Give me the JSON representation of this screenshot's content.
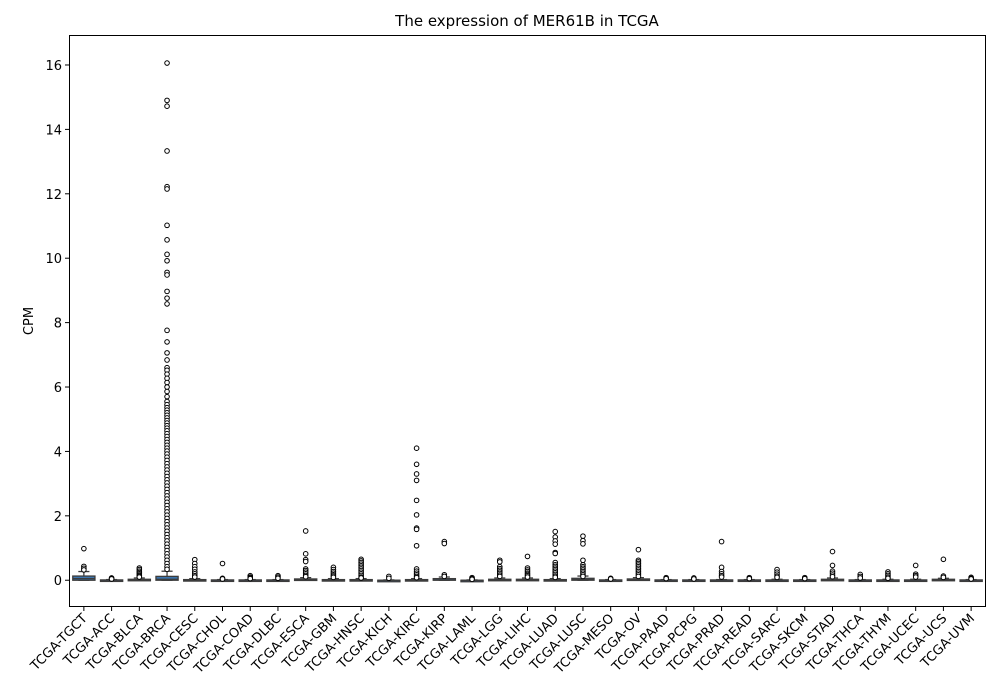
{
  "chart_data": {
    "type": "box",
    "title": "The expression of MER61B in TCGA",
    "xlabel": "",
    "ylabel": "CPM",
    "ylim": [
      -0.8,
      16.9
    ],
    "yticks": [
      0,
      2,
      4,
      6,
      8,
      10,
      12,
      14,
      16
    ],
    "grid": false,
    "box_color": "#3b75af",
    "categories": [
      "TCGA-TGCT",
      "TCGA-ACC",
      "TCGA-BLCA",
      "TCGA-BRCA",
      "TCGA-CESC",
      "TCGA-CHOL",
      "TCGA-COAD",
      "TCGA-DLBC",
      "TCGA-ESCA",
      "TCGA-GBM",
      "TCGA-HNSC",
      "TCGA-KICH",
      "TCGA-KIRC",
      "TCGA-KIRP",
      "TCGA-LAML",
      "TCGA-LGG",
      "TCGA-LIHC",
      "TCGA-LUAD",
      "TCGA-LUSC",
      "TCGA-MESO",
      "TCGA-OV",
      "TCGA-PAAD",
      "TCGA-PCPG",
      "TCGA-PRAD",
      "TCGA-READ",
      "TCGA-SARC",
      "TCGA-SKCM",
      "TCGA-STAD",
      "TCGA-THCA",
      "TCGA-THYM",
      "TCGA-UCEC",
      "TCGA-UCS",
      "TCGA-UVM"
    ],
    "boxes": [
      {
        "q1": 0.0,
        "median": 0.05,
        "q3": 0.13,
        "whisker_low": 0.0,
        "whisker_high": 0.27
      },
      {
        "q1": 0.0,
        "median": 0.0,
        "q3": 0.01,
        "whisker_low": 0.0,
        "whisker_high": 0.02
      },
      {
        "q1": 0.0,
        "median": 0.01,
        "q3": 0.03,
        "whisker_low": 0.0,
        "whisker_high": 0.07
      },
      {
        "q1": 0.0,
        "median": 0.03,
        "q3": 0.12,
        "whisker_low": 0.0,
        "whisker_high": 0.28
      },
      {
        "q1": 0.0,
        "median": 0.0,
        "q3": 0.02,
        "whisker_low": 0.0,
        "whisker_high": 0.05
      },
      {
        "q1": 0.0,
        "median": 0.0,
        "q3": 0.01,
        "whisker_low": 0.0,
        "whisker_high": 0.02
      },
      {
        "q1": 0.0,
        "median": 0.0,
        "q3": 0.01,
        "whisker_low": 0.0,
        "whisker_high": 0.02
      },
      {
        "q1": 0.0,
        "median": 0.0,
        "q3": 0.01,
        "whisker_low": 0.0,
        "whisker_high": 0.02
      },
      {
        "q1": 0.0,
        "median": 0.01,
        "q3": 0.04,
        "whisker_low": 0.0,
        "whisker_high": 0.08
      },
      {
        "q1": 0.0,
        "median": 0.0,
        "q3": 0.02,
        "whisker_low": 0.0,
        "whisker_high": 0.05
      },
      {
        "q1": 0.0,
        "median": 0.0,
        "q3": 0.02,
        "whisker_low": 0.0,
        "whisker_high": 0.05
      },
      {
        "q1": 0.0,
        "median": 0.0,
        "q3": 0.0,
        "whisker_low": 0.0,
        "whisker_high": 0.01
      },
      {
        "q1": 0.0,
        "median": 0.0,
        "q3": 0.02,
        "whisker_low": 0.0,
        "whisker_high": 0.05
      },
      {
        "q1": 0.0,
        "median": 0.01,
        "q3": 0.05,
        "whisker_low": 0.0,
        "whisker_high": 0.1
      },
      {
        "q1": 0.0,
        "median": 0.0,
        "q3": 0.0,
        "whisker_low": 0.0,
        "whisker_high": 0.01
      },
      {
        "q1": 0.0,
        "median": 0.01,
        "q3": 0.03,
        "whisker_low": 0.0,
        "whisker_high": 0.07
      },
      {
        "q1": 0.0,
        "median": 0.01,
        "q3": 0.03,
        "whisker_low": 0.0,
        "whisker_high": 0.07
      },
      {
        "q1": 0.0,
        "median": 0.0,
        "q3": 0.02,
        "whisker_low": 0.0,
        "whisker_high": 0.05
      },
      {
        "q1": 0.0,
        "median": 0.02,
        "q3": 0.06,
        "whisker_low": 0.0,
        "whisker_high": 0.13
      },
      {
        "q1": 0.0,
        "median": 0.0,
        "q3": 0.01,
        "whisker_low": 0.0,
        "whisker_high": 0.02
      },
      {
        "q1": 0.0,
        "median": 0.01,
        "q3": 0.04,
        "whisker_low": 0.0,
        "whisker_high": 0.08
      },
      {
        "q1": 0.0,
        "median": 0.0,
        "q3": 0.01,
        "whisker_low": 0.0,
        "whisker_high": 0.02
      },
      {
        "q1": 0.0,
        "median": 0.0,
        "q3": 0.01,
        "whisker_low": 0.0,
        "whisker_high": 0.02
      },
      {
        "q1": 0.0,
        "median": 0.0,
        "q3": 0.01,
        "whisker_low": 0.0,
        "whisker_high": 0.02
      },
      {
        "q1": 0.0,
        "median": 0.0,
        "q3": 0.01,
        "whisker_low": 0.0,
        "whisker_high": 0.02
      },
      {
        "q1": 0.0,
        "median": 0.0,
        "q3": 0.01,
        "whisker_low": 0.0,
        "whisker_high": 0.03
      },
      {
        "q1": 0.0,
        "median": 0.0,
        "q3": 0.01,
        "whisker_low": 0.0,
        "whisker_high": 0.02
      },
      {
        "q1": 0.0,
        "median": 0.01,
        "q3": 0.03,
        "whisker_low": 0.0,
        "whisker_high": 0.07
      },
      {
        "q1": 0.0,
        "median": 0.0,
        "q3": 0.01,
        "whisker_low": 0.0,
        "whisker_high": 0.02
      },
      {
        "q1": 0.0,
        "median": 0.0,
        "q3": 0.01,
        "whisker_low": 0.0,
        "whisker_high": 0.03
      },
      {
        "q1": 0.0,
        "median": 0.0,
        "q3": 0.01,
        "whisker_low": 0.0,
        "whisker_high": 0.03
      },
      {
        "q1": 0.0,
        "median": 0.01,
        "q3": 0.03,
        "whisker_low": 0.0,
        "whisker_high": 0.06
      },
      {
        "q1": 0.0,
        "median": 0.0,
        "q3": 0.01,
        "whisker_low": 0.0,
        "whisker_high": 0.02
      }
    ],
    "outliers": [
      [
        0.98,
        0.43,
        0.37,
        0.32
      ],
      [
        0.07,
        0.05,
        0.04
      ],
      [
        0.38,
        0.33,
        0.28,
        0.24,
        0.2,
        0.16,
        0.13,
        0.1
      ],
      [
        16.06,
        14.9,
        14.72,
        13.33,
        12.22,
        12.15,
        11.02,
        10.57,
        10.12,
        9.92,
        9.56,
        9.48,
        8.97,
        8.76,
        8.58,
        7.76,
        7.4,
        7.06,
        6.84,
        6.6,
        6.52,
        6.4,
        6.27,
        6.14,
        6.0,
        5.86,
        5.7,
        5.55,
        5.45,
        5.36,
        5.28,
        5.2,
        5.12,
        5.04,
        4.96,
        4.88,
        4.8,
        4.72,
        4.64,
        4.55,
        4.46,
        4.37,
        4.28,
        4.19,
        4.1,
        4.01,
        3.92,
        3.82,
        3.72,
        3.62,
        3.52,
        3.42,
        3.32,
        3.22,
        3.12,
        3.02,
        2.92,
        2.82,
        2.72,
        2.62,
        2.52,
        2.42,
        2.32,
        2.22,
        2.12,
        2.02,
        1.92,
        1.82,
        1.72,
        1.62,
        1.52,
        1.42,
        1.32,
        1.22,
        1.12,
        1.02,
        0.92,
        0.82,
        0.72,
        0.62,
        0.52,
        0.42,
        0.34
      ],
      [
        0.64,
        0.52,
        0.42,
        0.34,
        0.26,
        0.2,
        0.14,
        0.1
      ],
      [
        0.52,
        0.06,
        0.04
      ],
      [
        0.14,
        0.1,
        0.07,
        0.05
      ],
      [
        0.14,
        0.1,
        0.06
      ],
      [
        1.53,
        0.82,
        0.64,
        0.58,
        0.35,
        0.3,
        0.25,
        0.2,
        0.15,
        0.11
      ],
      [
        0.4,
        0.33,
        0.27,
        0.22,
        0.17,
        0.13,
        0.09
      ],
      [
        0.65,
        0.6,
        0.55,
        0.5,
        0.45,
        0.4,
        0.35,
        0.3,
        0.25,
        0.2,
        0.15,
        0.1,
        0.07
      ],
      [
        0.12,
        0.06
      ],
      [
        4.1,
        3.6,
        3.3,
        3.1,
        2.48,
        2.03,
        1.62,
        1.58,
        1.07,
        0.35,
        0.28,
        0.22,
        0.17,
        0.12,
        0.08
      ],
      [
        1.2,
        1.14,
        0.17,
        0.12
      ],
      [
        0.08,
        0.05,
        0.03
      ],
      [
        0.62,
        0.57,
        0.42,
        0.36,
        0.31,
        0.26,
        0.21,
        0.16,
        0.12
      ],
      [
        0.74,
        0.38,
        0.32,
        0.27,
        0.22,
        0.18,
        0.14,
        0.1
      ],
      [
        1.51,
        1.34,
        1.22,
        1.12,
        0.86,
        0.83,
        0.55,
        0.48,
        0.43,
        0.38,
        0.33,
        0.28,
        0.23,
        0.18,
        0.13,
        0.09
      ],
      [
        1.37,
        1.23,
        1.13,
        0.62,
        0.48,
        0.42,
        0.37,
        0.32,
        0.27,
        0.22,
        0.17,
        0.12
      ],
      [
        0.06,
        0.04
      ],
      [
        0.95,
        0.62,
        0.57,
        0.52,
        0.47,
        0.42,
        0.37,
        0.32,
        0.27,
        0.22,
        0.17,
        0.12
      ],
      [
        0.08,
        0.05
      ],
      [
        0.07,
        0.04
      ],
      [
        1.2,
        0.4,
        0.27,
        0.2,
        0.14,
        0.1
      ],
      [
        0.08,
        0.05
      ],
      [
        0.33,
        0.25,
        0.19,
        0.13,
        0.09
      ],
      [
        0.08,
        0.05
      ],
      [
        0.89,
        0.46,
        0.28,
        0.22,
        0.16,
        0.11
      ],
      [
        0.18,
        0.12,
        0.07
      ],
      [
        0.26,
        0.2,
        0.15,
        0.1,
        0.06
      ],
      [
        0.46,
        0.19,
        0.14,
        0.1
      ],
      [
        0.65,
        0.13,
        0.09
      ],
      [
        0.09,
        0.06,
        0.04
      ]
    ]
  }
}
